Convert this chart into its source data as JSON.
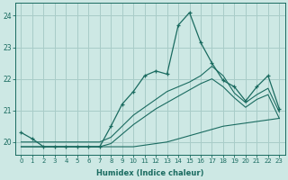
{
  "xlabel": "Humidex (Indice chaleur)",
  "background_color": "#cde8e4",
  "grid_color": "#a8ccc8",
  "line_color": "#1a6b60",
  "x_ticks": [
    0,
    1,
    2,
    3,
    4,
    5,
    6,
    7,
    8,
    9,
    10,
    11,
    12,
    13,
    14,
    15,
    16,
    17,
    18,
    19,
    20,
    21,
    22,
    23
  ],
  "ylim": [
    19.6,
    24.4
  ],
  "xlim": [
    -0.5,
    23.5
  ],
  "series_main": [
    20.3,
    20.1,
    19.85,
    19.85,
    19.85,
    19.85,
    19.85,
    19.85,
    20.5,
    21.2,
    21.6,
    22.1,
    22.25,
    22.15,
    23.7,
    24.1,
    23.15,
    22.5,
    21.95,
    21.75,
    21.3,
    21.75,
    22.1,
    21.05
  ],
  "series_upper_diagonal": [
    20.0,
    20.0,
    20.0,
    20.0,
    20.0,
    20.0,
    20.0,
    20.0,
    20.15,
    20.5,
    20.85,
    21.1,
    21.35,
    21.6,
    21.75,
    21.9,
    22.1,
    22.4,
    22.1,
    21.55,
    21.25,
    21.5,
    21.7,
    20.95
  ],
  "series_mid_diagonal": [
    19.85,
    19.85,
    19.85,
    19.85,
    19.85,
    19.85,
    19.85,
    19.85,
    19.95,
    20.25,
    20.55,
    20.8,
    21.05,
    21.25,
    21.45,
    21.65,
    21.85,
    22.0,
    21.75,
    21.4,
    21.1,
    21.35,
    21.5,
    20.75
  ],
  "series_lower_diagonal": [
    19.85,
    19.85,
    19.85,
    19.85,
    19.85,
    19.85,
    19.85,
    19.85,
    19.85,
    19.85,
    19.85,
    19.9,
    19.95,
    20.0,
    20.1,
    20.2,
    20.3,
    20.4,
    20.5,
    20.55,
    20.6,
    20.65,
    20.7,
    20.75
  ]
}
